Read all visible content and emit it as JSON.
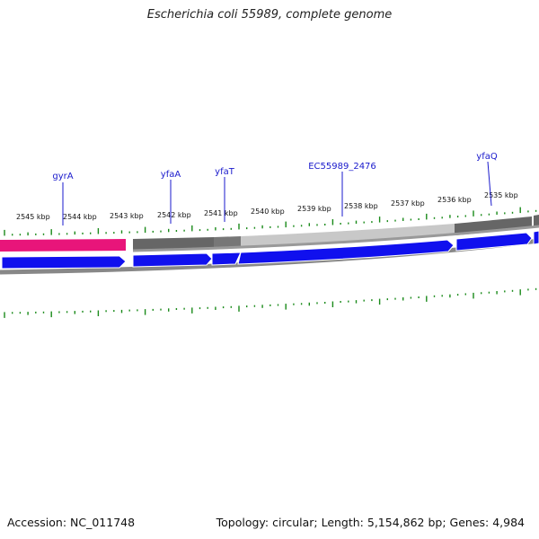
{
  "title": "Escherichia coli 55989, complete genome",
  "footer": {
    "accession": "Accession: NC_011748",
    "stats": "Topology: circular; Length: 5,154,862 bp; Genes: 4,984"
  },
  "ruler_labels": [
    "2545 kbp",
    "2544 kbp",
    "2543 kbp",
    "2542 kbp",
    "2541 kbp",
    "2540 kbp",
    "2539 kbp",
    "2538 kbp",
    "2537 kbp",
    "2536 kbp",
    "2535 kbp"
  ],
  "gene_labels": [
    "gyrA",
    "yfaA",
    "yfaT",
    "EC55989_2476",
    "yfaQ"
  ],
  "colors": {
    "ticks": "#1a8a1a",
    "gene_label": "#1a1acc",
    "forward_gene": "#e8157a",
    "cds": "#1010ee",
    "backbone": "#888888",
    "dark_band": "#666666",
    "light_band": "#c8c8c8"
  }
}
